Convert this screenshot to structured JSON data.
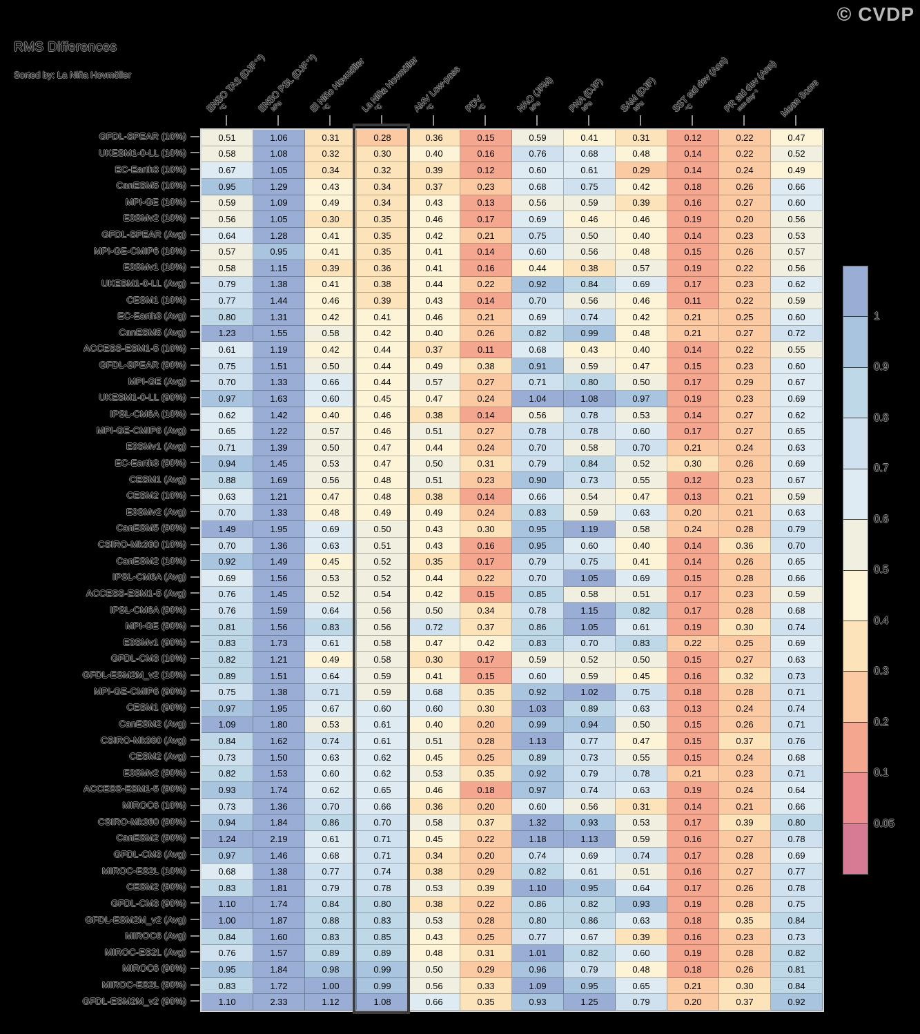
{
  "title": "RMS Differences",
  "subtitle": "Sorted by: La Niña Hovmöller",
  "watermark": "© CVDP",
  "colors": {
    "background": "#000000",
    "cell_text": "#000000",
    "watermark_text": "#b9b9b9",
    "highlight_border": "#3d3d3d",
    "grid_line": "rgba(0,0,0,0.28)",
    "table_frame": "#d6d6d6"
  },
  "chart_data": {
    "type": "heatmap",
    "title": "RMS Differences",
    "sorted_by": "La Niña Hovmöller",
    "highlighted_column": "La Niña Hovmöller",
    "highlighted_column_index": 3,
    "columns": [
      {
        "label": "ENSO TAS (DJF⁺¹)",
        "unit": "°C"
      },
      {
        "label": "ENSO PSL (DJF⁺¹)",
        "unit": "hPa"
      },
      {
        "label": "El Niño Hovmöller",
        "unit": "°C"
      },
      {
        "label": "La Niña Hovmöller",
        "unit": "°C"
      },
      {
        "label": "AMV Low-pass",
        "unit": "°C"
      },
      {
        "label": "PDV",
        "unit": "°C"
      },
      {
        "label": "NAO (JFM)",
        "unit": "hPa"
      },
      {
        "label": "PNA (DJF)",
        "unit": "hPa"
      },
      {
        "label": "SAM (DJF)",
        "unit": "hPa"
      },
      {
        "label": "SST std dev (Ann)",
        "unit": "°C"
      },
      {
        "label": "PR std dev (Ann)",
        "unit": "mm day⁻¹"
      },
      {
        "label": "Mean Score",
        "unit": ""
      }
    ],
    "rows": [
      {
        "label": "GFDL-SPEAR (10%)",
        "values": [
          0.51,
          1.06,
          0.31,
          0.28,
          0.36,
          0.15,
          0.59,
          0.41,
          0.31,
          0.12,
          0.22,
          0.47
        ]
      },
      {
        "label": "UKESM1-0-LL (10%)",
        "values": [
          0.58,
          1.08,
          0.32,
          0.3,
          0.4,
          0.16,
          0.76,
          0.68,
          0.48,
          0.14,
          0.22,
          0.52
        ]
      },
      {
        "label": "EC-Earth3 (10%)",
        "values": [
          0.67,
          1.05,
          0.34,
          0.32,
          0.39,
          0.12,
          0.6,
          0.61,
          0.29,
          0.14,
          0.24,
          0.49
        ]
      },
      {
        "label": "CanESM5 (10%)",
        "values": [
          0.95,
          1.29,
          0.43,
          0.34,
          0.37,
          0.23,
          0.68,
          0.75,
          0.42,
          0.18,
          0.26,
          0.66
        ]
      },
      {
        "label": "MPI-GE (10%)",
        "values": [
          0.59,
          1.09,
          0.49,
          0.34,
          0.43,
          0.13,
          0.56,
          0.59,
          0.39,
          0.16,
          0.27,
          0.6
        ]
      },
      {
        "label": "E3SMv2 (10%)",
        "values": [
          0.56,
          1.05,
          0.3,
          0.35,
          0.46,
          0.17,
          0.69,
          0.46,
          0.46,
          0.19,
          0.2,
          0.56
        ]
      },
      {
        "label": "GFDL-SPEAR (Avg)",
        "values": [
          0.64,
          1.28,
          0.41,
          0.35,
          0.42,
          0.21,
          0.75,
          0.5,
          0.4,
          0.14,
          0.23,
          0.53
        ]
      },
      {
        "label": "MPI-GE-CMIP6 (10%)",
        "values": [
          0.57,
          0.95,
          0.41,
          0.35,
          0.41,
          0.14,
          0.6,
          0.56,
          0.48,
          0.15,
          0.26,
          0.57
        ]
      },
      {
        "label": "E3SMv1 (10%)",
        "values": [
          0.58,
          1.15,
          0.39,
          0.36,
          0.41,
          0.16,
          0.44,
          0.38,
          0.57,
          0.19,
          0.22,
          0.56
        ]
      },
      {
        "label": "UKESM1-0-LL (Avg)",
        "values": [
          0.79,
          1.38,
          0.41,
          0.38,
          0.44,
          0.22,
          0.92,
          0.84,
          0.69,
          0.17,
          0.23,
          0.62
        ]
      },
      {
        "label": "CESM1 (10%)",
        "values": [
          0.77,
          1.44,
          0.46,
          0.39,
          0.43,
          0.14,
          0.7,
          0.56,
          0.46,
          0.11,
          0.22,
          0.59
        ]
      },
      {
        "label": "EC-Earth3 (Avg)",
        "values": [
          0.8,
          1.31,
          0.42,
          0.41,
          0.46,
          0.21,
          0.69,
          0.74,
          0.42,
          0.21,
          0.25,
          0.6
        ]
      },
      {
        "label": "CanESM5 (Avg)",
        "values": [
          1.23,
          1.55,
          0.58,
          0.42,
          0.4,
          0.26,
          0.82,
          0.99,
          0.48,
          0.21,
          0.27,
          0.72
        ]
      },
      {
        "label": "ACCESS-ESM1-5 (10%)",
        "values": [
          0.61,
          1.19,
          0.42,
          0.44,
          0.37,
          0.11,
          0.68,
          0.43,
          0.4,
          0.14,
          0.22,
          0.55
        ]
      },
      {
        "label": "GFDL-SPEAR (90%)",
        "values": [
          0.75,
          1.51,
          0.5,
          0.44,
          0.49,
          0.38,
          0.91,
          0.59,
          0.47,
          0.15,
          0.23,
          0.6
        ]
      },
      {
        "label": "MPI-GE (Avg)",
        "values": [
          0.7,
          1.33,
          0.66,
          0.44,
          0.57,
          0.27,
          0.71,
          0.8,
          0.5,
          0.17,
          0.29,
          0.67
        ]
      },
      {
        "label": "UKESM1-0-LL (90%)",
        "values": [
          0.97,
          1.63,
          0.6,
          0.45,
          0.47,
          0.24,
          1.04,
          1.08,
          0.97,
          0.19,
          0.23,
          0.69
        ]
      },
      {
        "label": "IPSL-CM6A (10%)",
        "values": [
          0.62,
          1.42,
          0.4,
          0.46,
          0.38,
          0.14,
          0.56,
          0.78,
          0.53,
          0.14,
          0.27,
          0.62
        ]
      },
      {
        "label": "MPI-GE-CMIP6 (Avg)",
        "values": [
          0.65,
          1.22,
          0.57,
          0.46,
          0.51,
          0.27,
          0.78,
          0.78,
          0.6,
          0.17,
          0.27,
          0.65
        ]
      },
      {
        "label": "E3SMv1 (Avg)",
        "values": [
          0.71,
          1.39,
          0.5,
          0.47,
          0.44,
          0.24,
          0.7,
          0.58,
          0.7,
          0.21,
          0.24,
          0.63
        ]
      },
      {
        "label": "EC-Earth3 (90%)",
        "values": [
          0.94,
          1.45,
          0.53,
          0.47,
          0.5,
          0.31,
          0.79,
          0.84,
          0.52,
          0.3,
          0.26,
          0.69
        ]
      },
      {
        "label": "CESM1 (Avg)",
        "values": [
          0.88,
          1.69,
          0.56,
          0.48,
          0.51,
          0.23,
          0.9,
          0.73,
          0.55,
          0.12,
          0.23,
          0.67
        ]
      },
      {
        "label": "CESM2 (10%)",
        "values": [
          0.63,
          1.21,
          0.47,
          0.48,
          0.38,
          0.14,
          0.66,
          0.54,
          0.47,
          0.13,
          0.21,
          0.59
        ]
      },
      {
        "label": "E3SMv2 (Avg)",
        "values": [
          0.7,
          1.33,
          0.48,
          0.49,
          0.49,
          0.24,
          0.83,
          0.59,
          0.63,
          0.2,
          0.21,
          0.63
        ]
      },
      {
        "label": "CanESM5 (90%)",
        "values": [
          1.49,
          1.95,
          0.69,
          0.5,
          0.43,
          0.3,
          0.95,
          1.19,
          0.58,
          0.24,
          0.28,
          0.79
        ]
      },
      {
        "label": "CSIRO-Mk360 (10%)",
        "values": [
          0.7,
          1.36,
          0.63,
          0.51,
          0.43,
          0.16,
          0.95,
          0.6,
          0.4,
          0.14,
          0.36,
          0.7
        ]
      },
      {
        "label": "CanESM2 (10%)",
        "values": [
          0.92,
          1.49,
          0.45,
          0.52,
          0.35,
          0.17,
          0.79,
          0.75,
          0.41,
          0.14,
          0.26,
          0.65
        ]
      },
      {
        "label": "IPSL-CM6A (Avg)",
        "values": [
          0.69,
          1.56,
          0.53,
          0.52,
          0.44,
          0.22,
          0.7,
          1.05,
          0.69,
          0.15,
          0.28,
          0.66
        ]
      },
      {
        "label": "ACCESS-ESM1-5 (Avg)",
        "values": [
          0.76,
          1.45,
          0.52,
          0.54,
          0.42,
          0.15,
          0.85,
          0.58,
          0.51,
          0.17,
          0.23,
          0.59
        ]
      },
      {
        "label": "IPSL-CM6A (90%)",
        "values": [
          0.76,
          1.59,
          0.64,
          0.56,
          0.5,
          0.34,
          0.78,
          1.15,
          0.82,
          0.17,
          0.28,
          0.68
        ]
      },
      {
        "label": "MPI-GE (90%)",
        "values": [
          0.81,
          1.56,
          0.83,
          0.56,
          0.72,
          0.37,
          0.86,
          1.05,
          0.61,
          0.19,
          0.3,
          0.74
        ]
      },
      {
        "label": "E3SMv1 (90%)",
        "values": [
          0.83,
          1.73,
          0.61,
          0.58,
          0.47,
          0.42,
          0.83,
          0.7,
          0.83,
          0.22,
          0.25,
          0.69
        ]
      },
      {
        "label": "GFDL-CM3 (10%)",
        "values": [
          0.82,
          1.21,
          0.49,
          0.58,
          0.3,
          0.17,
          0.59,
          0.52,
          0.5,
          0.15,
          0.27,
          0.63
        ]
      },
      {
        "label": "GFDL-ESM2M_v2 (10%)",
        "values": [
          0.89,
          1.51,
          0.64,
          0.59,
          0.41,
          0.15,
          0.6,
          0.59,
          0.45,
          0.16,
          0.32,
          0.73
        ]
      },
      {
        "label": "MPI-GE-CMIP6 (90%)",
        "values": [
          0.75,
          1.38,
          0.71,
          0.59,
          0.68,
          0.35,
          0.92,
          1.02,
          0.75,
          0.18,
          0.28,
          0.71
        ]
      },
      {
        "label": "CESM1 (90%)",
        "values": [
          0.97,
          1.95,
          0.67,
          0.6,
          0.6,
          0.3,
          1.03,
          0.89,
          0.63,
          0.13,
          0.24,
          0.74
        ]
      },
      {
        "label": "CanESM2 (Avg)",
        "values": [
          1.09,
          1.8,
          0.53,
          0.61,
          0.4,
          0.2,
          0.99,
          0.94,
          0.5,
          0.15,
          0.26,
          0.71
        ]
      },
      {
        "label": "CSIRO-Mk360 (Avg)",
        "values": [
          0.84,
          1.62,
          0.74,
          0.61,
          0.51,
          0.28,
          1.13,
          0.77,
          0.47,
          0.15,
          0.37,
          0.76
        ]
      },
      {
        "label": "CESM2 (Avg)",
        "values": [
          0.73,
          1.5,
          0.63,
          0.62,
          0.45,
          0.25,
          0.89,
          0.73,
          0.55,
          0.15,
          0.24,
          0.68
        ]
      },
      {
        "label": "E3SMv2 (90%)",
        "values": [
          0.82,
          1.53,
          0.6,
          0.62,
          0.53,
          0.35,
          0.92,
          0.79,
          0.78,
          0.21,
          0.23,
          0.71
        ]
      },
      {
        "label": "ACCESS-ESM1-5 (90%)",
        "values": [
          0.93,
          1.74,
          0.62,
          0.65,
          0.46,
          0.18,
          0.97,
          0.74,
          0.63,
          0.19,
          0.24,
          0.64
        ]
      },
      {
        "label": "MIROC6 (10%)",
        "values": [
          0.73,
          1.36,
          0.7,
          0.66,
          0.36,
          0.2,
          0.6,
          0.56,
          0.31,
          0.14,
          0.21,
          0.66
        ]
      },
      {
        "label": "CSIRO-Mk360 (90%)",
        "values": [
          0.94,
          1.84,
          0.86,
          0.7,
          0.58,
          0.37,
          1.32,
          0.93,
          0.53,
          0.17,
          0.39,
          0.8
        ]
      },
      {
        "label": "CanESM2 (90%)",
        "values": [
          1.24,
          2.19,
          0.61,
          0.71,
          0.45,
          0.22,
          1.18,
          1.13,
          0.59,
          0.16,
          0.27,
          0.78
        ]
      },
      {
        "label": "GFDL-CM3 (Avg)",
        "values": [
          0.97,
          1.46,
          0.68,
          0.71,
          0.34,
          0.2,
          0.74,
          0.69,
          0.74,
          0.17,
          0.28,
          0.69
        ]
      },
      {
        "label": "MIROC-ES2L (10%)",
        "values": [
          0.68,
          1.38,
          0.77,
          0.74,
          0.38,
          0.29,
          0.82,
          0.61,
          0.51,
          0.16,
          0.27,
          0.77
        ]
      },
      {
        "label": "CESM2 (90%)",
        "values": [
          0.83,
          1.81,
          0.79,
          0.78,
          0.53,
          0.39,
          1.1,
          0.95,
          0.64,
          0.17,
          0.26,
          0.78
        ]
      },
      {
        "label": "GFDL-CM3 (90%)",
        "values": [
          1.1,
          1.74,
          0.84,
          0.8,
          0.38,
          0.22,
          0.86,
          0.82,
          0.93,
          0.19,
          0.28,
          0.75
        ]
      },
      {
        "label": "GFDL-ESM2M_v2 (Avg)",
        "values": [
          1.0,
          1.87,
          0.88,
          0.83,
          0.53,
          0.28,
          0.8,
          0.86,
          0.63,
          0.18,
          0.35,
          0.84
        ]
      },
      {
        "label": "MIROC6 (Avg)",
        "values": [
          0.84,
          1.6,
          0.83,
          0.85,
          0.43,
          0.25,
          0.77,
          0.67,
          0.39,
          0.16,
          0.23,
          0.73
        ]
      },
      {
        "label": "MIROC-ES2L (Avg)",
        "values": [
          0.76,
          1.57,
          0.89,
          0.89,
          0.48,
          0.31,
          1.01,
          0.82,
          0.6,
          0.19,
          0.28,
          0.82
        ]
      },
      {
        "label": "MIROC6 (90%)",
        "values": [
          0.95,
          1.84,
          0.98,
          0.99,
          0.5,
          0.29,
          0.96,
          0.79,
          0.48,
          0.18,
          0.26,
          0.81
        ]
      },
      {
        "label": "MIROC-ES2L (90%)",
        "values": [
          0.83,
          1.72,
          1.0,
          0.99,
          0.56,
          0.33,
          1.09,
          0.95,
          0.65,
          0.21,
          0.3,
          0.84
        ]
      },
      {
        "label": "GFDL-ESM2M_v2 (90%)",
        "values": [
          1.1,
          2.33,
          1.12,
          1.08,
          0.66,
          0.35,
          0.93,
          1.25,
          0.79,
          0.2,
          0.37,
          0.92
        ]
      }
    ],
    "colorbar": {
      "position": "right",
      "tick_labels_top_to_bottom": [
        "1",
        "0.9",
        "0.8",
        "0.7",
        "0.6",
        "0.5",
        "0.4",
        "0.3",
        "0.2",
        "0.1",
        "0.05"
      ],
      "bin_thresholds_ascending": [
        0.05,
        0.1,
        0.2,
        0.3,
        0.4,
        0.5,
        0.6,
        0.7,
        0.8,
        0.9,
        1.0
      ],
      "bin_colors_top_to_bottom": [
        "#9aaed5",
        "#a9c4df",
        "#bed8e8",
        "#cfe1ee",
        "#dfebf3",
        "#f0efe0",
        "#fdf3d7",
        "#fce3b9",
        "#fbcaa2",
        "#f4a68f",
        "#ec8e90",
        "#d67b93"
      ]
    }
  }
}
